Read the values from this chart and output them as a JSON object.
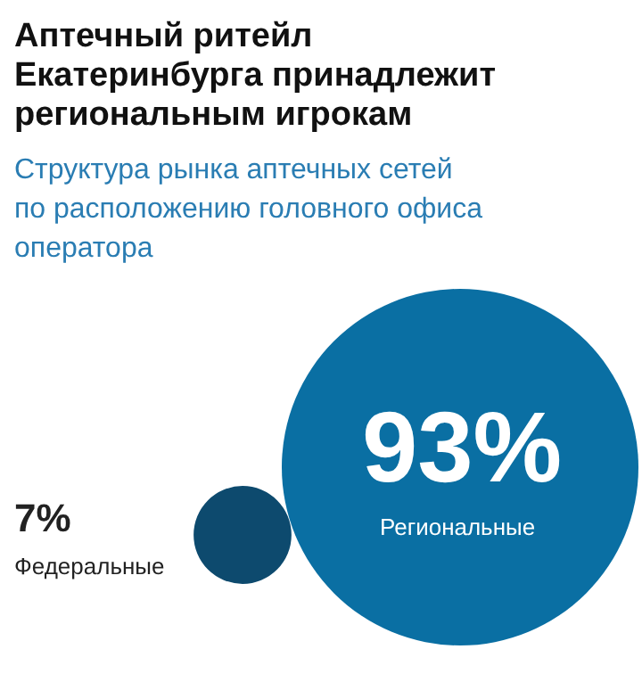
{
  "chart_data": {
    "type": "other",
    "title": "Аптечный ритейл Екатеринбурга принадлежит региональным игрокам",
    "subtitle": "Структура рынка аптечных сетей по расположению головного офиса оператора",
    "categories": [
      "Федеральные",
      "Региональные"
    ],
    "values": [
      7,
      93
    ],
    "value_labels": [
      "7%",
      "93%"
    ],
    "colors": [
      "#0d4a6e",
      "#0a6fa3"
    ]
  }
}
